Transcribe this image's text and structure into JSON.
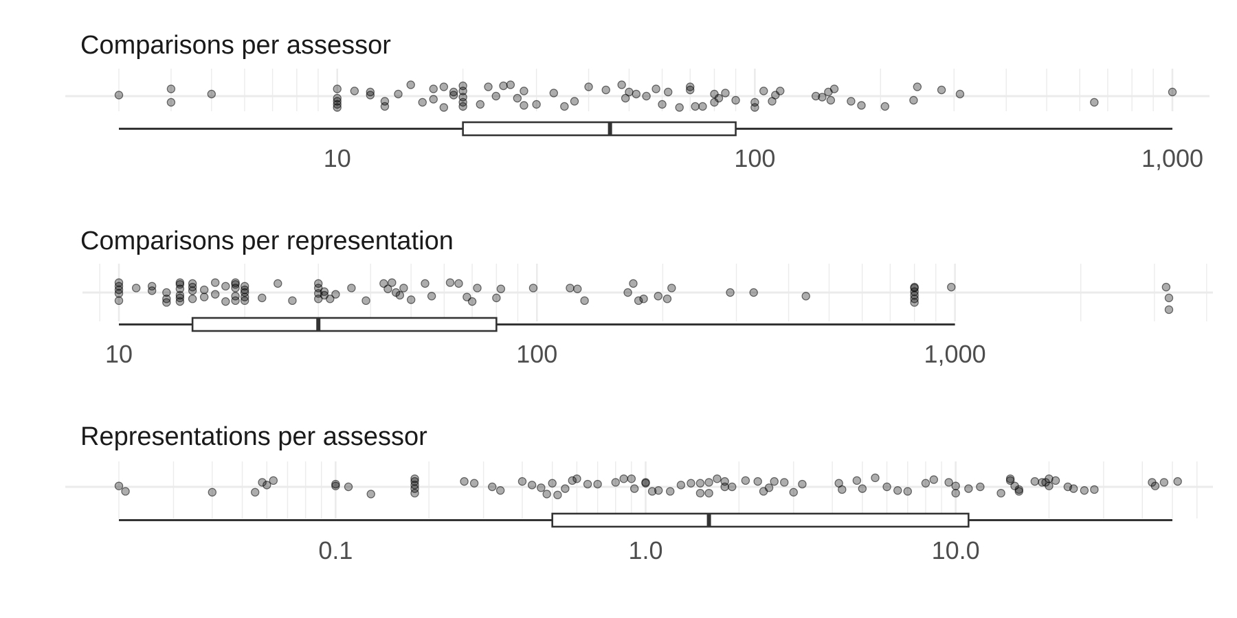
{
  "chart_data": [
    {
      "type": "scatter",
      "subtype": "jittered strip with horizontal boxplot",
      "title": "Comparisons per assessor",
      "scale": "log10",
      "xlim": [
        3,
        1000
      ],
      "ticks": [
        10,
        100,
        1000
      ],
      "tick_labels": [
        "10",
        "100",
        "1,000"
      ],
      "grid": true,
      "boxplot": {
        "min": 3,
        "q1": 20,
        "median": 45,
        "q3": 90,
        "max": 1000
      },
      "x": [
        3,
        4,
        4,
        5,
        10,
        10,
        10,
        10,
        10,
        11,
        12,
        12,
        13,
        13,
        14,
        15,
        16,
        17,
        17,
        18,
        18,
        19,
        19,
        20,
        20,
        20,
        20,
        20,
        22,
        23,
        24,
        25,
        26,
        27,
        28,
        28,
        30,
        33,
        35,
        37,
        40,
        44,
        48,
        49,
        50,
        52,
        55,
        58,
        60,
        62,
        66,
        70,
        70,
        72,
        75,
        80,
        80,
        82,
        85,
        90,
        100,
        100,
        105,
        110,
        112,
        115,
        140,
        145,
        150,
        152,
        155,
        170,
        180,
        205,
        240,
        245,
        280,
        310,
        650,
        1000
      ],
      "y": [
        0.05,
        -0.3,
        0.35,
        0.1,
        -0.55,
        -0.4,
        -0.25,
        -0.1,
        0.35,
        0.25,
        0.05,
        0.2,
        -0.25,
        -0.5,
        0.1,
        0.55,
        -0.3,
        -0.15,
        0.35,
        -0.55,
        0.45,
        0.05,
        0.2,
        -0.5,
        -0.3,
        -0.05,
        0.25,
        0.5,
        -0.4,
        0.45,
        0.0,
        0.5,
        0.55,
        -0.1,
        -0.45,
        0.25,
        -0.4,
        0.15,
        -0.5,
        -0.25,
        0.45,
        0.3,
        0.55,
        -0.1,
        0.2,
        0.1,
        0.0,
        0.35,
        -0.4,
        0.2,
        -0.55,
        0.45,
        0.3,
        -0.5,
        -0.5,
        -0.3,
        0.1,
        -0.1,
        0.15,
        -0.2,
        -0.3,
        -0.55,
        0.25,
        -0.25,
        0.05,
        0.25,
        0.0,
        -0.05,
        0.2,
        -0.2,
        0.35,
        -0.25,
        -0.45,
        -0.5,
        -0.2,
        0.45,
        0.3,
        0.1,
        -0.3,
        0.2
      ]
    },
    {
      "type": "scatter",
      "subtype": "jittered strip with horizontal boxplot",
      "title": "Comparisons per representation",
      "scale": "log10",
      "xlim": [
        10,
        3300
      ],
      "ticks": [
        10,
        100,
        1000
      ],
      "tick_labels": [
        "10",
        "100",
        "1,000"
      ],
      "grid": true,
      "boxplot": {
        "min": 10,
        "q1": 15,
        "median": 30,
        "q3": 80,
        "max": 1000
      },
      "x": [
        10,
        10,
        10,
        10,
        10,
        11,
        12,
        12,
        13,
        13,
        13,
        14,
        14,
        14,
        14,
        14,
        14,
        15,
        15,
        15,
        15,
        16,
        16,
        17,
        17,
        18,
        18,
        19,
        19,
        19,
        19,
        19,
        20,
        20,
        20,
        20,
        20,
        22,
        24,
        26,
        30,
        30,
        30,
        30,
        31,
        31,
        32,
        33,
        36,
        39,
        43,
        44,
        45,
        46,
        47,
        48,
        50,
        54,
        56,
        62,
        65,
        68,
        70,
        72,
        80,
        82,
        98,
        120,
        125,
        130,
        165,
        170,
        175,
        180,
        195,
        205,
        210,
        290,
        330,
        440,
        800,
        800,
        800,
        800,
        800,
        800,
        980,
        3200,
        3250,
        3250
      ],
      "y": [
        -0.45,
        0.55,
        0.35,
        0.15,
        -0.05,
        0.25,
        0.1,
        0.35,
        0.0,
        -0.35,
        -0.55,
        0.55,
        0.2,
        -0.15,
        0.45,
        -0.3,
        -0.5,
        0.5,
        0.1,
        -0.35,
        0.3,
        -0.25,
        0.15,
        0.55,
        -0.1,
        0.35,
        -0.5,
        0.25,
        0.55,
        -0.2,
        -0.45,
        0.45,
        0.0,
        0.15,
        -0.25,
        0.35,
        -0.45,
        -0.3,
        0.5,
        -0.45,
        0.25,
        -0.05,
        -0.35,
        0.5,
        -0.15,
        0.05,
        -0.35,
        -0.1,
        0.25,
        -0.45,
        0.5,
        0.2,
        0.55,
        0.0,
        -0.15,
        0.25,
        -0.4,
        0.5,
        -0.2,
        0.55,
        0.5,
        -0.25,
        -0.5,
        0.25,
        -0.3,
        0.2,
        0.25,
        0.25,
        0.2,
        -0.45,
        0.0,
        0.5,
        -0.45,
        -0.35,
        -0.2,
        -0.35,
        0.25,
        0.0,
        0.0,
        -0.2,
        0.25,
        0.05,
        -0.15,
        -0.35,
        -0.55,
        0.3,
        0.3,
        0.3,
        -0.3,
        -0.95
      ]
    },
    {
      "type": "scatter",
      "subtype": "jittered strip with horizontal boxplot",
      "title": "Representations per assessor",
      "scale": "log10",
      "xlim": [
        0.02,
        50
      ],
      "ticks": [
        0.1,
        1,
        10
      ],
      "tick_labels": [
        "0.1",
        "1.0",
        "10.0"
      ],
      "grid": true,
      "boxplot": {
        "min": 0.02,
        "q1": 0.5,
        "median": 1.6,
        "q3": 11,
        "max": 50
      },
      "x": [
        0.02,
        0.021,
        0.04,
        0.055,
        0.058,
        0.06,
        0.063,
        0.1,
        0.1,
        0.11,
        0.13,
        0.18,
        0.18,
        0.18,
        0.18,
        0.18,
        0.26,
        0.28,
        0.32,
        0.34,
        0.4,
        0.43,
        0.46,
        0.48,
        0.5,
        0.52,
        0.55,
        0.58,
        0.6,
        0.65,
        0.7,
        0.8,
        0.85,
        0.9,
        0.92,
        1.0,
        1.0,
        1.05,
        1.1,
        1.2,
        1.3,
        1.4,
        1.5,
        1.5,
        1.6,
        1.6,
        1.7,
        1.8,
        1.8,
        1.9,
        2.1,
        2.3,
        2.4,
        2.5,
        2.6,
        2.8,
        3.0,
        3.2,
        4.2,
        4.3,
        4.8,
        5.0,
        5.5,
        6.0,
        6.5,
        7.0,
        8.0,
        8.5,
        9.5,
        10.0,
        10.0,
        11.0,
        12.0,
        14.0,
        15.0,
        15.0,
        15.5,
        16.0,
        16.0,
        18.0,
        19.0,
        19.5,
        20.0,
        20.0,
        21.0,
        23.0,
        24.0,
        26.0,
        28.0,
        43.0,
        44.0,
        47.0,
        52.0
      ],
      "y": [
        0.05,
        -0.25,
        -0.3,
        -0.3,
        0.25,
        0.1,
        0.35,
        0.15,
        0.05,
        0.0,
        -0.4,
        0.45,
        0.3,
        0.1,
        -0.1,
        -0.35,
        0.3,
        0.2,
        0.0,
        -0.2,
        0.3,
        0.1,
        -0.05,
        -0.4,
        0.2,
        -0.45,
        -0.1,
        0.35,
        0.45,
        0.15,
        0.15,
        0.25,
        0.45,
        0.45,
        -0.1,
        0.25,
        0.2,
        -0.25,
        -0.2,
        -0.25,
        0.1,
        0.2,
        0.2,
        -0.35,
        -0.35,
        0.25,
        0.45,
        0.0,
        0.3,
        0.0,
        0.35,
        0.3,
        -0.25,
        -0.05,
        0.3,
        0.25,
        -0.3,
        0.15,
        0.2,
        -0.15,
        0.35,
        -0.1,
        0.5,
        0.0,
        -0.2,
        -0.25,
        0.2,
        0.4,
        0.25,
        -0.35,
        0.05,
        -0.1,
        0.0,
        -0.35,
        0.45,
        0.35,
        0.05,
        -0.25,
        -0.15,
        0.3,
        0.25,
        0.25,
        0.45,
        0.05,
        0.35,
        0.0,
        -0.1,
        -0.2,
        -0.15,
        0.25,
        0.05,
        0.25,
        0.3
      ]
    }
  ]
}
